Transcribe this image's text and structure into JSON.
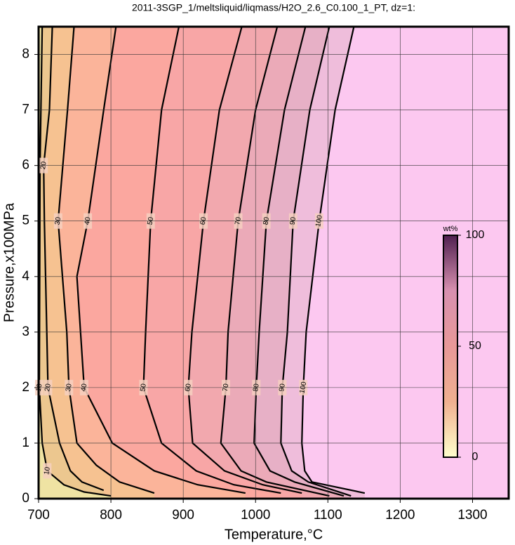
{
  "chart_data": {
    "type": "contour",
    "title": "2011-3SGP_1/meltsliquid/liqmass/H2O_2.6_C0.100_1_PT, dz=1:",
    "xlabel": "Temperature,°C",
    "ylabel": "Pressure,x100MPa",
    "xlim": [
      700,
      1350
    ],
    "ylim": [
      0,
      8.5
    ],
    "xticks": [
      700,
      800,
      900,
      1000,
      1100,
      1200,
      1300
    ],
    "yticks": [
      0,
      1,
      2,
      3,
      4,
      5,
      6,
      7,
      8
    ],
    "grid": true,
    "contours": [
      {
        "level": 10,
        "x": [
          705,
          702,
          701,
          705,
          712,
          735,
          763,
          800
        ],
        "y": [
          8.5,
          6,
          2,
          1,
          0.5,
          0.25,
          0.12,
          0.05
        ]
      },
      {
        "level": 20,
        "x": [
          719,
          715,
          707,
          708,
          713,
          729,
          744,
          760,
          790
        ],
        "y": [
          8.5,
          7,
          6,
          5,
          2,
          1,
          0.5,
          0.3,
          0.15
        ]
      },
      {
        "level": 30,
        "x": [
          749,
          740,
          727,
          739,
          742,
          753,
          780,
          812,
          860
        ],
        "y": [
          8.5,
          7,
          5,
          3,
          2,
          1,
          0.6,
          0.3,
          0.1
        ]
      },
      {
        "level": 40,
        "x": [
          807,
          790,
          768,
          753,
          763,
          802,
          860,
          920,
          986
        ],
        "y": [
          8.5,
          7,
          5,
          4,
          2,
          1,
          0.5,
          0.25,
          0.1
        ]
      },
      {
        "level": 50,
        "x": [
          894,
          870,
          855,
          848,
          845,
          870,
          918,
          970,
          1035
        ],
        "y": [
          8.5,
          7,
          5,
          3,
          2,
          1,
          0.5,
          0.25,
          0.1
        ]
      },
      {
        "level": 60,
        "x": [
          981,
          950,
          928,
          912,
          907,
          913,
          957,
          1010,
          1064
        ],
        "y": [
          8.5,
          7,
          5,
          3,
          2,
          1,
          0.5,
          0.25,
          0.1
        ]
      },
      {
        "level": 70,
        "x": [
          1030,
          1000,
          976,
          962,
          959,
          952,
          980,
          1015,
          1102
        ],
        "y": [
          8.5,
          7,
          5,
          3,
          2,
          1,
          0.5,
          0.3,
          0.05
        ]
      },
      {
        "level": 80,
        "x": [
          1069,
          1040,
          1015,
          1005,
          1001,
          998,
          1020,
          1054,
          1122
        ],
        "y": [
          8.5,
          7,
          5,
          3,
          2,
          1,
          0.5,
          0.3,
          0.05
        ]
      },
      {
        "level": 90,
        "x": [
          1102,
          1075,
          1052,
          1044,
          1037,
          1035,
          1050,
          1073,
          1132
        ],
        "y": [
          8.5,
          7,
          5,
          3,
          2,
          1,
          0.5,
          0.3,
          0.05
        ]
      },
      {
        "level": 100,
        "x": [
          1136,
          1110,
          1088,
          1070,
          1066,
          1064,
          1068,
          1078,
          1151
        ],
        "y": [
          8.5,
          7,
          5,
          3,
          2,
          1,
          0.5,
          0.3,
          0.1
        ]
      }
    ],
    "fill_colors": [
      "#efe3a3",
      "#ecc78f",
      "#f6c291",
      "#fbb49a",
      "#fba79f",
      "#f8a6a6",
      "#f2a8ae",
      "#ebaab8",
      "#e7b0c6",
      "#efbddb",
      "#fcc8f0"
    ],
    "colorbar": {
      "label": "wt%",
      "lim": [
        0,
        100
      ],
      "ticks": [
        0,
        50,
        100
      ],
      "colors": [
        "#ffffcc",
        "#f0b090",
        "#e89898",
        "#d890b0",
        "#502050"
      ]
    }
  }
}
